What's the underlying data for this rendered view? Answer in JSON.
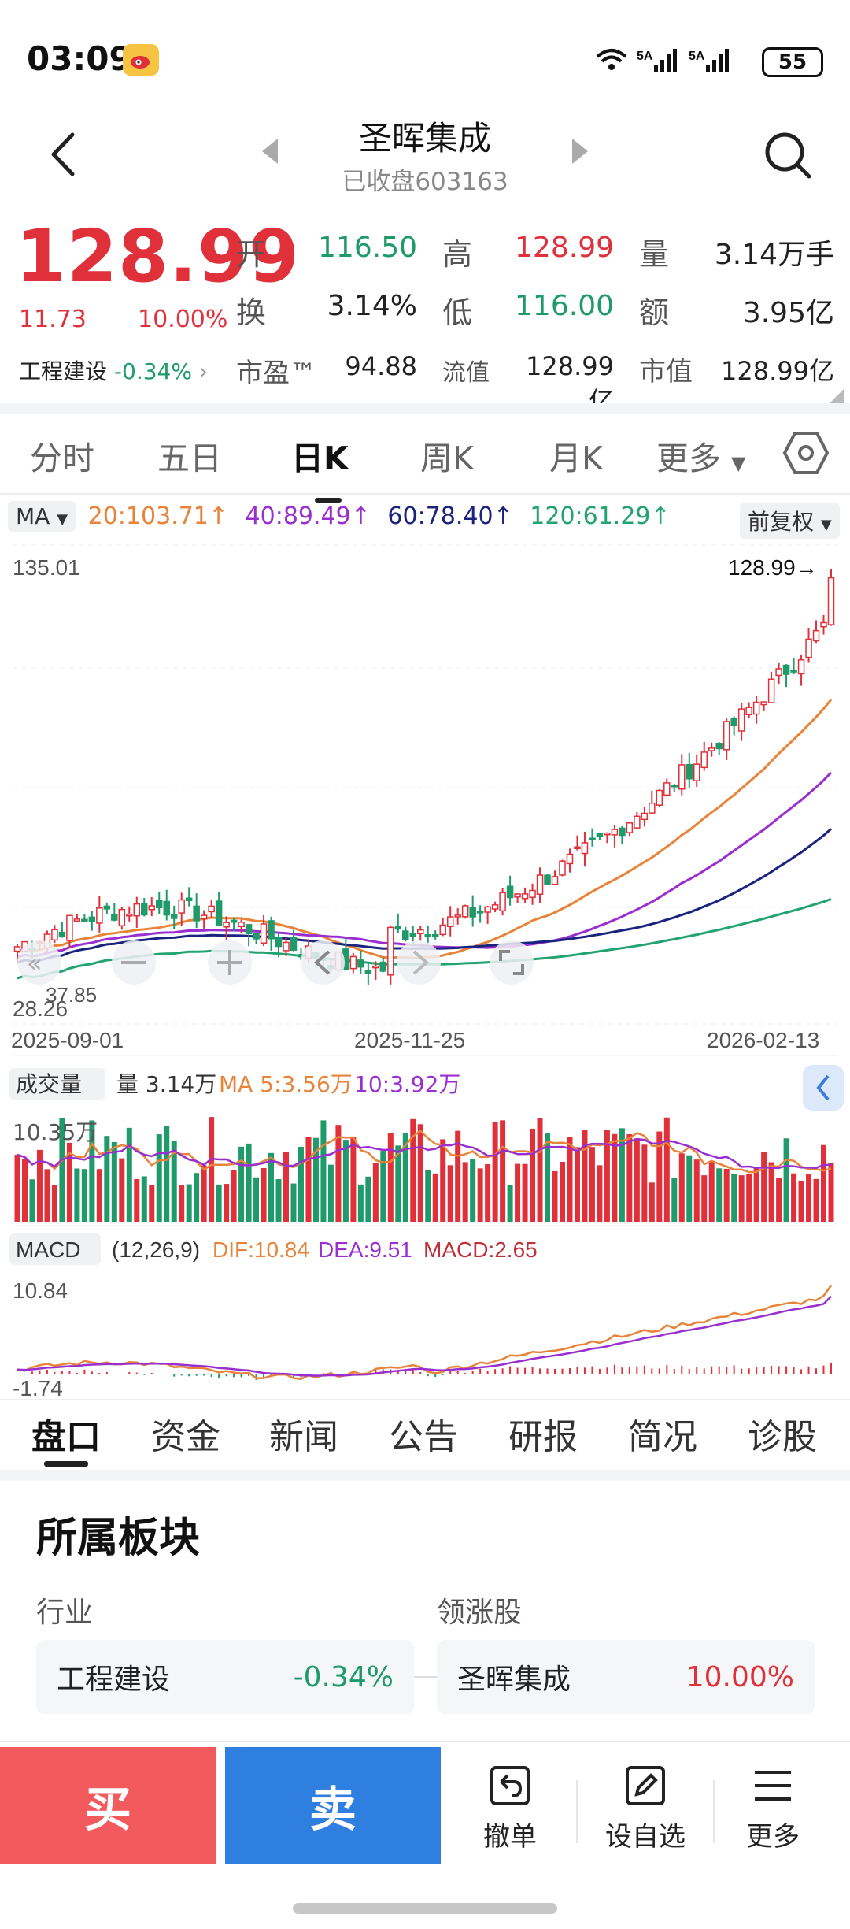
{
  "status_bar": {
    "time": "03:09",
    "net": "6 5A 5A",
    "battery": "55"
  },
  "header": {
    "name": "圣晖集成",
    "sub": "已收盘603163"
  },
  "quote": {
    "price": "128.99",
    "change": "11.73",
    "change_pct": "10.00%",
    "sector_name": "工程建设",
    "sector_pct": "-0.34%",
    "rows": [
      [
        {
          "l": "开",
          "v": "116.50",
          "c": "green"
        },
        {
          "l": "高",
          "v": "128.99",
          "c": "red"
        },
        {
          "l": "量",
          "v": "3.14万手",
          "c": "dark"
        }
      ],
      [
        {
          "l": "换",
          "v": "3.14%",
          "c": "dark"
        },
        {
          "l": "低",
          "v": "116.00",
          "c": "green"
        },
        {
          "l": "额",
          "v": "3.95亿",
          "c": "dark"
        }
      ],
      [
        {
          "l": "市盈™",
          "v": "94.88",
          "c": "dark"
        },
        {
          "l": "流值",
          "v": "128.99亿",
          "c": "dark"
        },
        {
          "l": "市值",
          "v": "128.99亿",
          "c": "dark"
        }
      ]
    ]
  },
  "chart_tabs": [
    "分时",
    "五日",
    "日K",
    "周K",
    "月K",
    "更多"
  ],
  "ma_labels": {
    "ma": "MA",
    "ma20": "20:103.71↑",
    "ma40": "40:89.49↑",
    "ma60": "60:78.40↑",
    "ma120": "120:61.29↑",
    "fq": "前复权"
  },
  "chart_text": {
    "y_top": "135.01",
    "last_price": "128.99→",
    "low_label": "37.85",
    "y_bottom": "28.26",
    "dates": [
      "2025-09-01",
      "2025-11-25",
      "2026-02-13"
    ],
    "vol_chip": "成交量",
    "vol_info": "量 3.14万",
    "vol_ma5": "MA 5:3.56万",
    "vol_ma10": "10:3.92万",
    "vol_top": "10.35万",
    "macd_chip": "MACD",
    "macd_params": "(12,26,9)",
    "dif": "DIF:10.84",
    "dea": "DEA:9.51",
    "macd": "MACD:2.65",
    "macd_top": "10.84",
    "macd_bottom": "-1.74"
  },
  "chart_data": {
    "type": "candlestick",
    "dates": [
      "2025-09-01",
      "2025-11-25",
      "2026-02-13"
    ],
    "ylim": [
      28.26,
      135.01
    ],
    "last_close": 128.99,
    "series": [
      {
        "name": "MA20",
        "last": 103.71
      },
      {
        "name": "MA40",
        "last": 89.49
      },
      {
        "name": "MA60",
        "last": 78.4
      },
      {
        "name": "MA120",
        "last": 61.29
      }
    ],
    "volume": {
      "last": "3.14万",
      "ma5": "3.56万",
      "ma10": "3.92万",
      "max": "10.35万"
    },
    "macd": {
      "dif": 10.84,
      "dea": 9.51,
      "macd": 2.65,
      "ylim": [
        -1.74,
        10.84
      ]
    }
  },
  "bottom_tabs": [
    "盘口",
    "资金",
    "新闻",
    "公告",
    "研报",
    "简况",
    "诊股"
  ],
  "sector_section": {
    "title": "所属板块",
    "industry_label": "行业",
    "leader_label": "领涨股",
    "industry_name": "工程建设",
    "industry_pct": "-0.34%",
    "leader_name": "圣晖集成",
    "leader_pct": "10.00%"
  },
  "actions": {
    "buy": "买",
    "sell": "卖",
    "cancel": "撤单",
    "watch": "设自选",
    "more": "更多"
  },
  "colors": {
    "up": "#e0303a",
    "down": "#1f9a6a",
    "ma20": "#e8843a",
    "ma40": "#9a2fd0",
    "ma60": "#1a237e",
    "ma120": "#22a36f"
  }
}
